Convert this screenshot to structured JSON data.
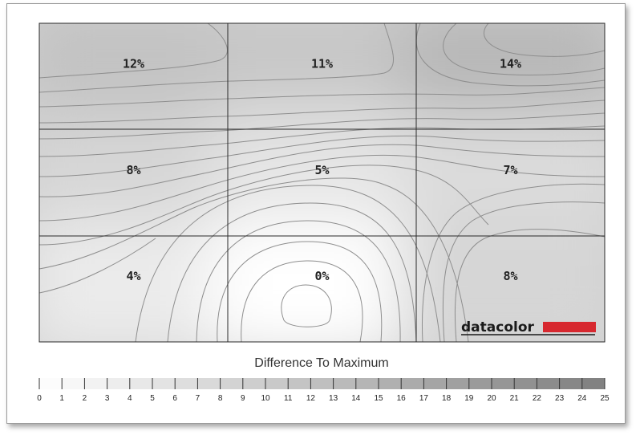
{
  "chart_data": {
    "type": "heatmap",
    "grid": {
      "rows": 3,
      "cols": 3
    },
    "cells": [
      {
        "row": 0,
        "col": 0,
        "value": 12,
        "label": "12%"
      },
      {
        "row": 0,
        "col": 1,
        "value": 11,
        "label": "11%"
      },
      {
        "row": 0,
        "col": 2,
        "value": 14,
        "label": "14%"
      },
      {
        "row": 1,
        "col": 0,
        "value": 8,
        "label": "8%"
      },
      {
        "row": 1,
        "col": 1,
        "value": 5,
        "label": "5%"
      },
      {
        "row": 1,
        "col": 2,
        "value": 7,
        "label": "7%"
      },
      {
        "row": 2,
        "col": 0,
        "value": 4,
        "label": "4%"
      },
      {
        "row": 2,
        "col": 1,
        "value": 0,
        "label": "0%"
      },
      {
        "row": 2,
        "col": 2,
        "value": 8,
        "label": "8%"
      }
    ],
    "scale": {
      "title": "Difference To Maximum",
      "min": 0,
      "max": 25,
      "ticks": [
        "0",
        "1",
        "2",
        "3",
        "4",
        "5",
        "6",
        "7",
        "8",
        "9",
        "10",
        "11",
        "12",
        "13",
        "14",
        "15",
        "16",
        "17",
        "18",
        "19",
        "20",
        "21",
        "22",
        "23",
        "24",
        "25"
      ]
    },
    "contours": true
  },
  "logo": {
    "text": "datacolor",
    "bar_color": "#d7282f"
  },
  "colors": {
    "min": "#ffffff",
    "max": "#7f7f7f",
    "contour": "#8e8e8e",
    "grid": "#2a2a2a"
  }
}
